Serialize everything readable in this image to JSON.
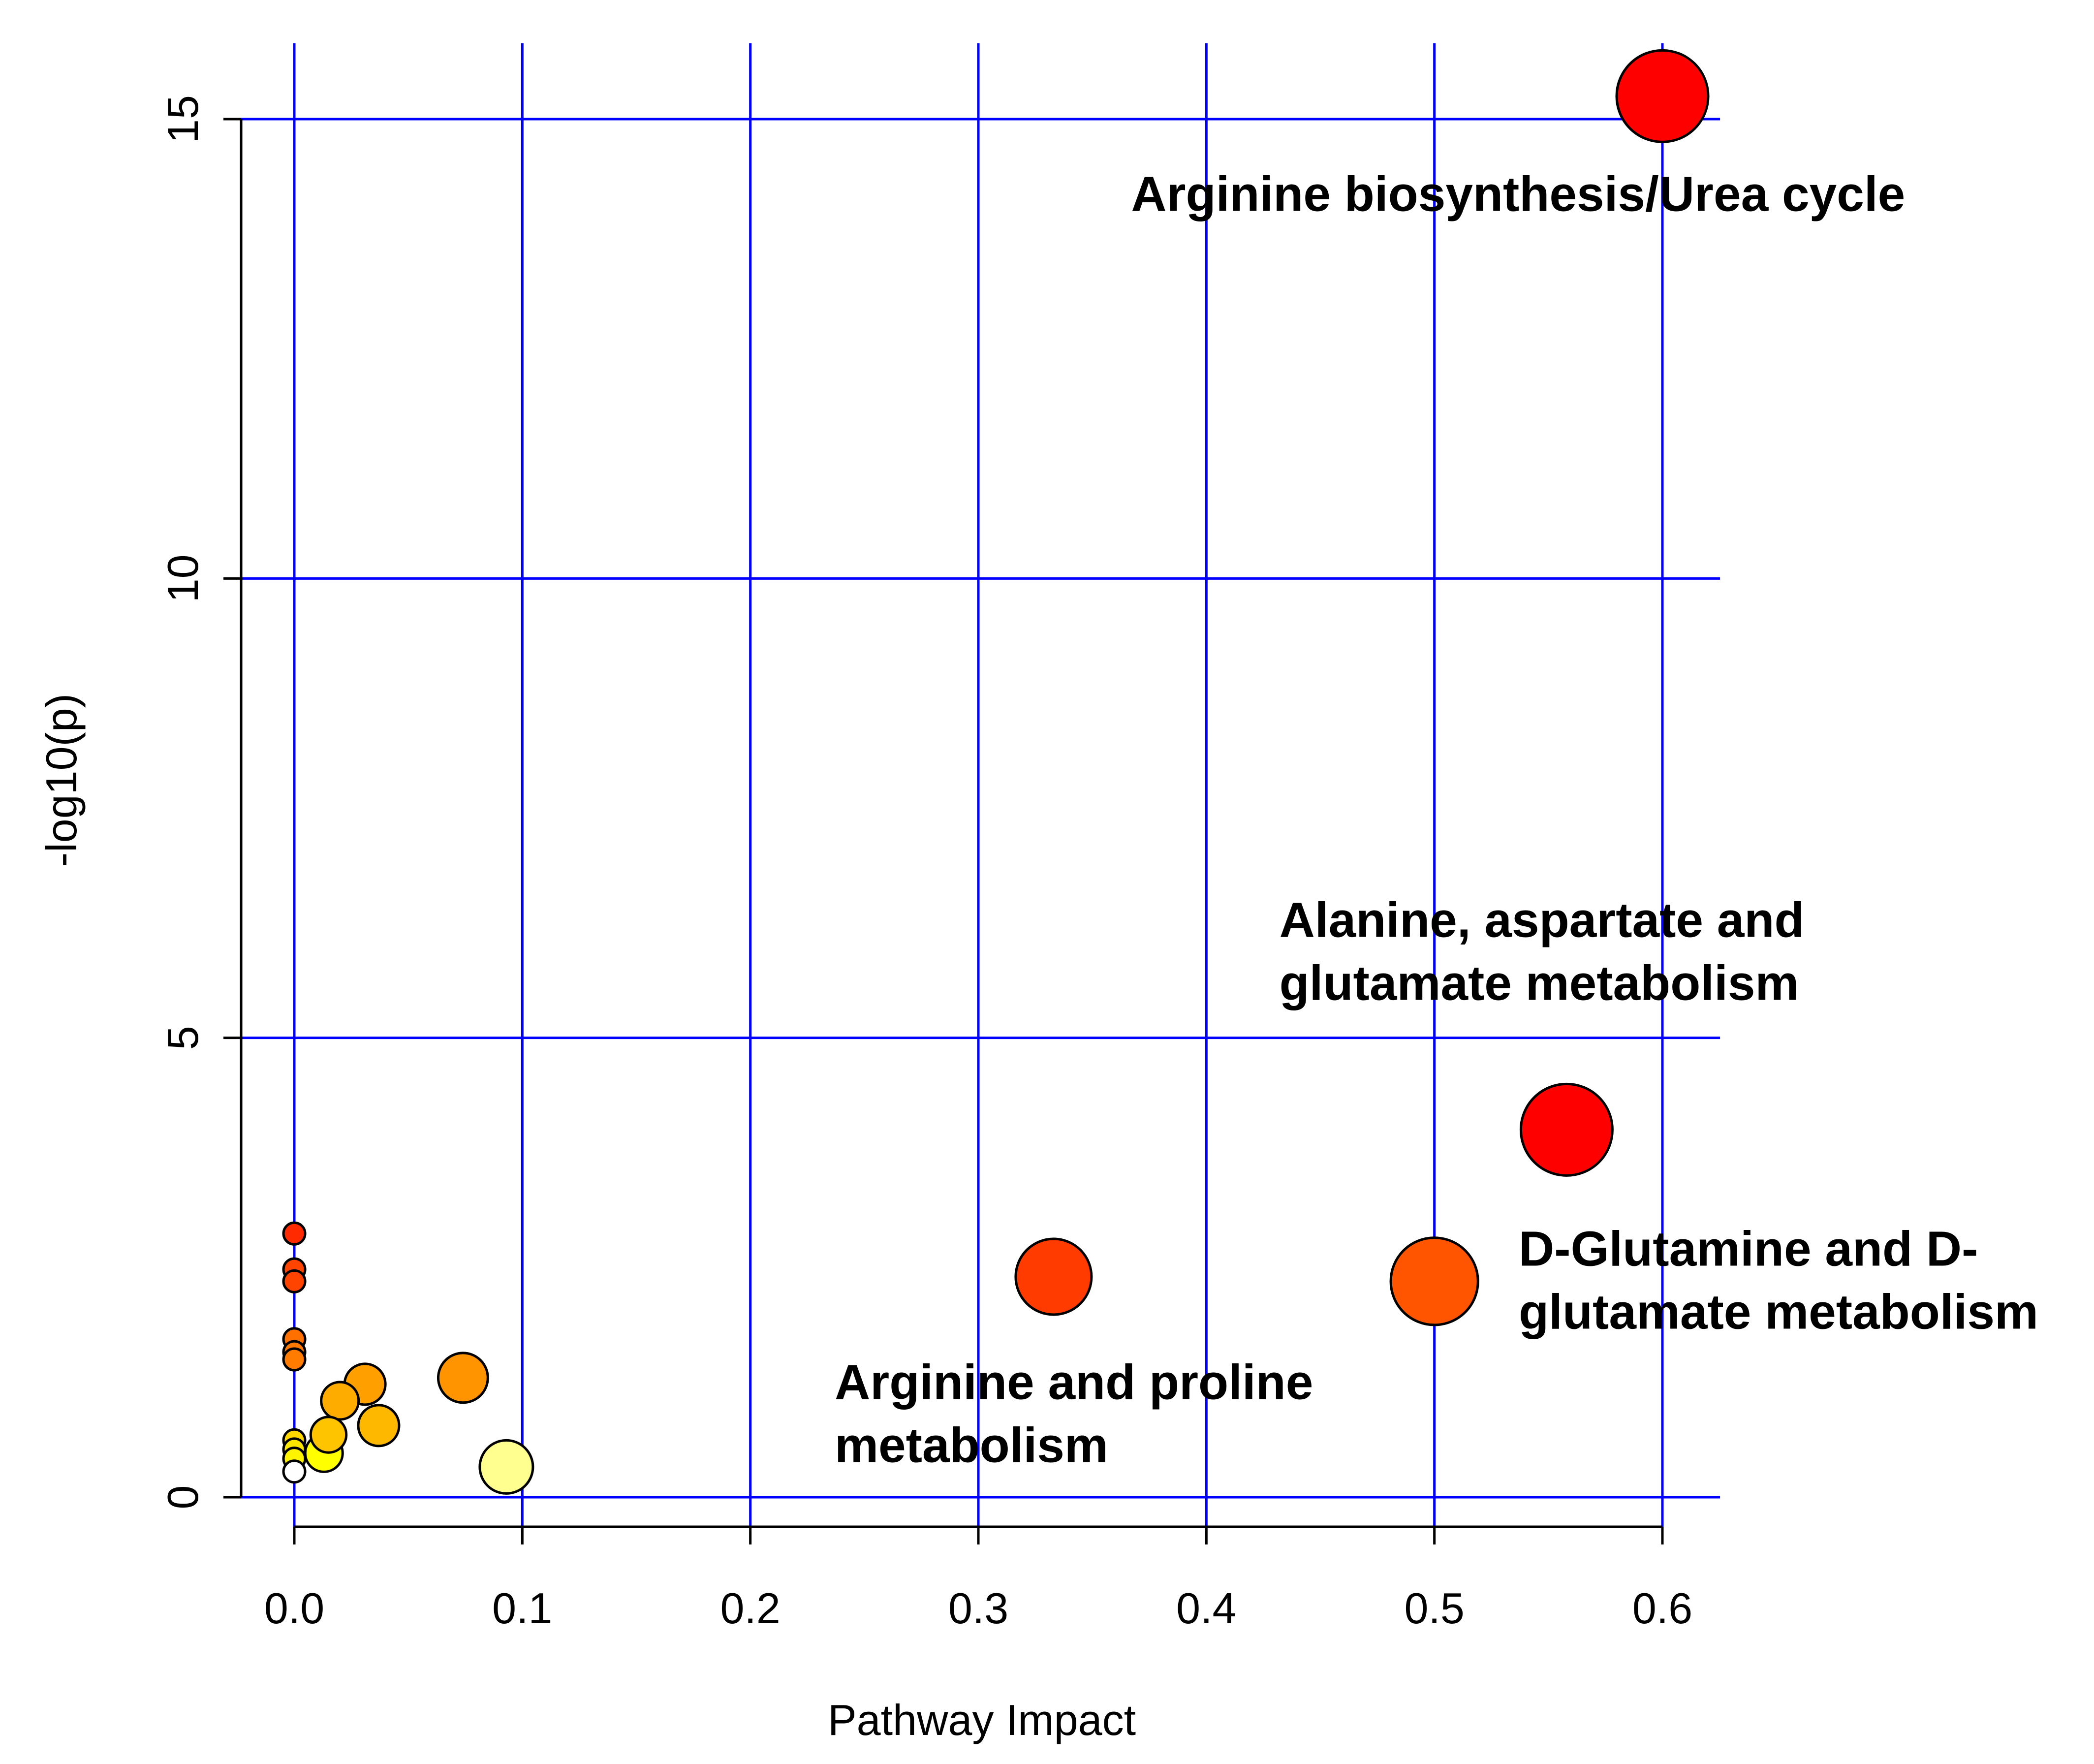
{
  "chart_data": {
    "type": "scatter",
    "title": "",
    "xlabel": "Pathway Impact",
    "ylabel": "-log10(p)",
    "xlim": [
      0.0,
      0.6
    ],
    "ylim": [
      0,
      15
    ],
    "grid": true,
    "x_ticks": [
      {
        "value": 0.0,
        "label": "0.0"
      },
      {
        "value": 0.1,
        "label": "0.1"
      },
      {
        "value": 0.2,
        "label": "0.2"
      },
      {
        "value": 0.3,
        "label": "0.3"
      },
      {
        "value": 0.4,
        "label": "0.4"
      },
      {
        "value": 0.5,
        "label": "0.5"
      },
      {
        "value": 0.6,
        "label": "0.6"
      }
    ],
    "y_ticks": [
      {
        "value": 0,
        "label": "0"
      },
      {
        "value": 5,
        "label": "5"
      },
      {
        "value": 10,
        "label": "10"
      },
      {
        "value": 15,
        "label": "15"
      }
    ],
    "points": [
      {
        "x": 0.6,
        "y": 15.25,
        "size": 1.0,
        "color": "#ff0000"
      },
      {
        "x": 0.558,
        "y": 4.0,
        "size": 1.0,
        "color": "#ff0000"
      },
      {
        "x": 0.5,
        "y": 2.35,
        "size": 0.95,
        "color": "#ff5500"
      },
      {
        "x": 0.333,
        "y": 2.4,
        "size": 0.82,
        "color": "#ff3b00"
      },
      {
        "x": 0.0,
        "y": 2.87,
        "size": 0.2,
        "color": "#ff2a00"
      },
      {
        "x": 0.0,
        "y": 2.48,
        "size": 0.2,
        "color": "#ff4400"
      },
      {
        "x": 0.0,
        "y": 2.35,
        "size": 0.2,
        "color": "#ff4400"
      },
      {
        "x": 0.0,
        "y": 1.72,
        "size": 0.2,
        "color": "#ff7000"
      },
      {
        "x": 0.0,
        "y": 1.58,
        "size": 0.2,
        "color": "#ff7800"
      },
      {
        "x": 0.0,
        "y": 1.5,
        "size": 0.2,
        "color": "#ff7c00"
      },
      {
        "x": 0.074,
        "y": 1.3,
        "size": 0.52,
        "color": "#ff9400"
      },
      {
        "x": 0.031,
        "y": 1.23,
        "size": 0.42,
        "color": "#ffa000"
      },
      {
        "x": 0.02,
        "y": 1.05,
        "size": 0.38,
        "color": "#ffac00"
      },
      {
        "x": 0.037,
        "y": 0.78,
        "size": 0.42,
        "color": "#ffb800"
      },
      {
        "x": 0.015,
        "y": 0.68,
        "size": 0.36,
        "color": "#ffc400"
      },
      {
        "x": 0.0,
        "y": 0.62,
        "size": 0.2,
        "color": "#ffd800"
      },
      {
        "x": 0.0,
        "y": 0.52,
        "size": 0.2,
        "color": "#ffe800"
      },
      {
        "x": 0.0,
        "y": 0.42,
        "size": 0.2,
        "color": "#fff400"
      },
      {
        "x": 0.013,
        "y": 0.48,
        "size": 0.38,
        "color": "#ffff00"
      },
      {
        "x": 0.093,
        "y": 0.33,
        "size": 0.56,
        "color": "#ffff90"
      },
      {
        "x": 0.0,
        "y": 0.28,
        "size": 0.2,
        "color": "#ffffff"
      }
    ],
    "annotations": [
      {
        "lines": [
          "Arginine biosynthesis/Urea cycle"
        ],
        "x": 0.367,
        "y": 14.0
      },
      {
        "lines": [
          "Alanine, aspartate and",
          "glutamate metabolism"
        ],
        "x": 0.432,
        "y": 6.1
      },
      {
        "lines": [
          "D-Glutamine and D-",
          "glutamate metabolism"
        ],
        "x": 0.537,
        "y": 2.52
      },
      {
        "lines": [
          "Arginine and proline",
          "metabolism"
        ],
        "x": 0.237,
        "y": 1.07
      }
    ]
  }
}
